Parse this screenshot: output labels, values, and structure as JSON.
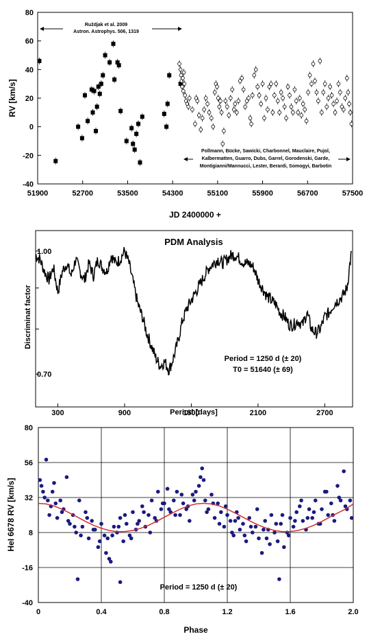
{
  "chart_data": [
    {
      "type": "scatter",
      "xlabel": "JD 2400000 +",
      "ylabel": "RV [km/s]",
      "xlim": [
        51900,
        57500
      ],
      "ylim": [
        -40,
        80
      ],
      "xticks": [
        "51900",
        "52700",
        "53500",
        "54300",
        "55100",
        "55900",
        "56700",
        "57500"
      ],
      "yticks": [
        "-40",
        "-20",
        "0",
        "20",
        "40",
        "60",
        "80"
      ],
      "annotations": {
        "left_ref_line1": "Ruždjak et al. 2009",
        "left_ref_line2": "Astron. Astrophys. 506, 1319",
        "right_ref_line1": "Pollmann, Bücke, Sawicki, Charbonnel, Mauclaire, Pujol,",
        "right_ref_line2": "Kalbermatten, Guarro, Dubs, Garrel, Gorodenski, Garde,",
        "right_ref_line3": "Montigianni/Mannucci, Lester, Berardi, Somogyi, Barbotin"
      },
      "series": [
        {
          "marker": "filled-square",
          "x": [
            51930,
            52220,
            52620,
            52690,
            52740,
            52790,
            52860,
            52880,
            52905,
            52935,
            52955,
            52980,
            53005,
            53030,
            53060,
            53100,
            53180,
            53245,
            53265,
            53320,
            53345,
            53375,
            53480,
            53570,
            53595,
            53625,
            53655,
            53690,
            53720,
            53760,
            54150,
            54190,
            54210,
            54240,
            54440
          ],
          "y": [
            46,
            -24,
            0,
            -8,
            22,
            4,
            26,
            10,
            25,
            -3,
            14,
            28,
            23,
            30,
            36,
            50,
            45,
            58,
            33,
            45,
            43,
            11,
            -10,
            -1,
            -12,
            -16,
            -5,
            2,
            -25,
            7,
            9,
            0,
            16,
            36,
            30
          ]
        },
        {
          "marker": "open-circle",
          "x": [
            54420,
            54440,
            54450,
            54460,
            54470,
            54480,
            54490,
            54500,
            54510,
            54520,
            54540,
            54560,
            54580,
            54600,
            54650,
            54700,
            54720,
            54740,
            54770,
            54800,
            54830,
            54860,
            54890,
            54920,
            54950,
            54990,
            55020,
            55050,
            55070,
            55090,
            55110,
            55130,
            55150,
            55170,
            55190,
            55210,
            55240,
            55270,
            55300,
            55330,
            55360,
            55390,
            55410,
            55440,
            55470,
            55500,
            55530,
            55560,
            55590,
            55620,
            55650,
            55680,
            55700,
            55720,
            55750,
            55780,
            55810,
            55840,
            55870,
            55900,
            55930,
            55960,
            55990,
            56020,
            56050,
            56080,
            56110,
            56140,
            56170,
            56200,
            56230,
            56260,
            56290,
            56320,
            56350,
            56380,
            56410,
            56440,
            56470,
            56500,
            56530,
            56560,
            56590,
            56620,
            56650,
            56680,
            56710,
            56740,
            56770,
            56800,
            56830,
            56860,
            56890,
            56920,
            56950,
            56980,
            57010,
            57040,
            57070,
            57100,
            57130,
            57160,
            57190,
            57220,
            57250,
            57280,
            57310,
            57340,
            57370,
            57400,
            57420,
            57440,
            57460,
            57480
          ],
          "y": [
            44,
            40,
            36,
            32,
            28,
            34,
            25,
            38,
            30,
            22,
            18,
            16,
            14,
            20,
            12,
            2,
            20,
            18,
            8,
            -2,
            6,
            12,
            20,
            16,
            10,
            6,
            0,
            24,
            30,
            28,
            20,
            14,
            18,
            10,
            -12,
            -3,
            18,
            14,
            8,
            20,
            26,
            12,
            16,
            10,
            18,
            32,
            34,
            26,
            14,
            18,
            20,
            6,
            2,
            22,
            36,
            40,
            28,
            22,
            16,
            30,
            6,
            20,
            12,
            28,
            30,
            10,
            22,
            30,
            18,
            10,
            24,
            20,
            14,
            6,
            28,
            22,
            14,
            10,
            26,
            18,
            10,
            20,
            8,
            16,
            12,
            4,
            24,
            36,
            30,
            44,
            32,
            24,
            18,
            46,
            10,
            24,
            30,
            14,
            20,
            28,
            22,
            16,
            10,
            18,
            30,
            24,
            14,
            12,
            20,
            34,
            24,
            16,
            10,
            2
          ]
        }
      ]
    },
    {
      "type": "line",
      "title": "PDM Analysis",
      "xlabel": "Period [days]",
      "ylabel": "Discriminat factor",
      "xlim": [
        100,
        2950
      ],
      "ylim": [
        0.62,
        1.05
      ],
      "xticks": [
        "300",
        "900",
        "1500",
        "2100",
        "2700"
      ],
      "ytick_labels": [
        "1.00",
        "0.70"
      ],
      "annotations": {
        "period": "Period = 1250 d (± 20)",
        "t0": "T0 = 51640 (± 69)"
      },
      "x": [
        100,
        140,
        180,
        220,
        260,
        300,
        340,
        380,
        420,
        460,
        500,
        540,
        580,
        620,
        660,
        700,
        740,
        780,
        820,
        860,
        900,
        940,
        980,
        1020,
        1060,
        1100,
        1140,
        1180,
        1220,
        1260,
        1300,
        1340,
        1380,
        1420,
        1460,
        1500,
        1540,
        1580,
        1620,
        1660,
        1700,
        1740,
        1780,
        1820,
        1860,
        1900,
        1940,
        1980,
        2020,
        2060,
        2100,
        2140,
        2180,
        2220,
        2260,
        2300,
        2340,
        2380,
        2420,
        2460,
        2500,
        2540,
        2580,
        2620,
        2660,
        2700,
        2740,
        2780,
        2820,
        2860,
        2900,
        2940
      ],
      "y": [
        0.99,
        0.98,
        0.95,
        0.93,
        0.96,
        0.9,
        0.95,
        0.97,
        0.94,
        0.98,
        0.95,
        0.93,
        0.97,
        0.94,
        0.98,
        0.96,
        0.95,
        0.99,
        0.97,
        0.98,
        1.0,
        0.97,
        0.92,
        0.87,
        0.84,
        0.8,
        0.77,
        0.74,
        0.72,
        0.73,
        0.71,
        0.74,
        0.78,
        0.83,
        0.86,
        0.88,
        0.9,
        0.92,
        0.94,
        0.96,
        0.97,
        0.98,
        0.97,
        0.98,
        0.99,
        0.99,
        0.98,
        0.97,
        0.97,
        0.96,
        0.93,
        0.91,
        0.89,
        0.88,
        0.87,
        0.85,
        0.84,
        0.82,
        0.82,
        0.83,
        0.82,
        0.85,
        0.81,
        0.8,
        0.81,
        0.84,
        0.85,
        0.87,
        0.88,
        0.89,
        0.91,
        1.0
      ]
    },
    {
      "type": "scatter",
      "xlabel": "Phase",
      "ylabel": "HeI 6678 RV [km/s]",
      "xlim": [
        0,
        2
      ],
      "ylim": [
        -40,
        80
      ],
      "xticks": [
        "0",
        "0.4",
        "0.8",
        "1.2",
        "1.6",
        "2.0"
      ],
      "yticks": [
        "-40",
        "-16",
        "8",
        "32",
        "56",
        "80"
      ],
      "grid": true,
      "annotations": {
        "period": "Period = 1250 d (± 20)"
      },
      "fit": {
        "color": "#d03030",
        "x": [
          0,
          0.05,
          0.1,
          0.15,
          0.2,
          0.25,
          0.3,
          0.35,
          0.4,
          0.45,
          0.5,
          0.55,
          0.6,
          0.65,
          0.7,
          0.75,
          0.8,
          0.85,
          0.9,
          0.95,
          1.0,
          1.05,
          1.1,
          1.15,
          1.2,
          1.25,
          1.3,
          1.35,
          1.4,
          1.45,
          1.5,
          1.55,
          1.6,
          1.65,
          1.7,
          1.75,
          1.8,
          1.85,
          1.9,
          1.95,
          2.0
        ],
        "y": [
          28,
          27.6,
          26.2,
          24,
          21.3,
          18.5,
          15.6,
          13,
          10.9,
          9.4,
          8.6,
          8.7,
          9.4,
          10.9,
          13,
          15.6,
          18.5,
          21.3,
          24,
          26.2,
          27.6,
          28,
          27.6,
          26.2,
          24,
          21.3,
          18.5,
          15.6,
          13,
          10.9,
          9.4,
          8.6,
          8.7,
          9.4,
          10.9,
          13,
          15.6,
          18.5,
          21.3,
          24,
          27.6
        ]
      },
      "series": [
        {
          "marker": "filled-circle",
          "color": "#1a1a80",
          "x": [
            0.01,
            0.03,
            0.05,
            0.06,
            0.08,
            0.1,
            0.12,
            0.14,
            0.16,
            0.18,
            0.2,
            0.22,
            0.24,
            0.26,
            0.28,
            0.3,
            0.32,
            0.34,
            0.36,
            0.38,
            0.4,
            0.42,
            0.44,
            0.46,
            0.48,
            0.5,
            0.52,
            0.54,
            0.56,
            0.58,
            0.6,
            0.62,
            0.64,
            0.66,
            0.68,
            0.7,
            0.72,
            0.74,
            0.76,
            0.78,
            0.8,
            0.82,
            0.84,
            0.86,
            0.88,
            0.9,
            0.92,
            0.94,
            0.96,
            0.98,
            1.0,
            1.02,
            1.04,
            1.06,
            1.08,
            1.1,
            1.12,
            1.14,
            1.16,
            1.18,
            1.2,
            1.22,
            1.24,
            1.26,
            1.28,
            1.3,
            1.32,
            1.34,
            1.36,
            1.38,
            1.4,
            1.42,
            1.44,
            1.46,
            1.48,
            1.5,
            1.52,
            1.54,
            1.56,
            1.58,
            1.6,
            1.62,
            1.64,
            1.66,
            1.68,
            1.7,
            1.72,
            1.74,
            1.76,
            1.78,
            1.8,
            1.82,
            1.84,
            1.86,
            1.88,
            1.9,
            1.92,
            1.94,
            1.96,
            1.98,
            0.02,
            0.04,
            0.07,
            0.09,
            0.11,
            0.15,
            0.19,
            0.23,
            0.27,
            0.31,
            0.35,
            0.39,
            0.43,
            0.47,
            0.51,
            0.55,
            0.59,
            0.63,
            0.67,
            0.71,
            0.75,
            0.79,
            0.83,
            0.87,
            0.91,
            0.95,
            0.99,
            1.03,
            1.07,
            1.11,
            1.15,
            1.19,
            1.23,
            1.27,
            1.31,
            1.35,
            1.39,
            1.43,
            1.47,
            1.51,
            1.55,
            1.59,
            1.63,
            1.67,
            1.71,
            1.75,
            1.79,
            1.83,
            1.87,
            1.91,
            1.95,
            1.99,
            0.25,
            0.45,
            0.52,
            1.05,
            1.25,
            1.45,
            1.53
          ],
          "y": [
            44,
            36,
            58,
            30,
            26,
            42,
            18,
            30,
            24,
            46,
            14,
            20,
            8,
            30,
            12,
            22,
            4,
            16,
            10,
            -2,
            14,
            6,
            4,
            -12,
            12,
            8,
            18,
            2,
            14,
            6,
            22,
            10,
            16,
            26,
            12,
            20,
            30,
            18,
            36,
            24,
            28,
            38,
            22,
            30,
            36,
            20,
            28,
            24,
            16,
            34,
            36,
            40,
            52,
            30,
            24,
            34,
            18,
            28,
            22,
            12,
            20,
            16,
            6,
            22,
            10,
            14,
            2,
            18,
            8,
            12,
            4,
            -6,
            16,
            10,
            20,
            8,
            2,
            14,
            -2,
            8,
            18,
            12,
            22,
            26,
            16,
            10,
            24,
            18,
            30,
            14,
            24,
            36,
            20,
            28,
            16,
            40,
            30,
            50,
            24,
            30,
            40,
            32,
            20,
            36,
            28,
            22,
            16,
            12,
            6,
            18,
            10,
            2,
            -6,
            6,
            12,
            20,
            4,
            14,
            22,
            8,
            16,
            28,
            24,
            20,
            34,
            26,
            30,
            46,
            22,
            28,
            14,
            26,
            8,
            18,
            6,
            12,
            24,
            10,
            0,
            14,
            20,
            6,
            16,
            30,
            18,
            22,
            14,
            36,
            20,
            32,
            26,
            18,
            -24,
            -10,
            -26,
            44,
            16,
            4,
            -24
          ]
        }
      ]
    }
  ]
}
